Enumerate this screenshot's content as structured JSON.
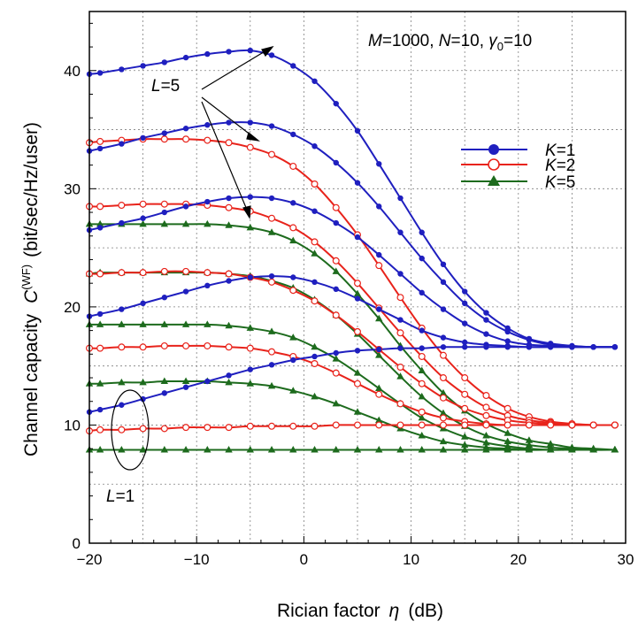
{
  "chart_data": {
    "type": "line",
    "annotation": {
      "M_label": "M",
      "M_value": "=1000, ",
      "N_label": "N",
      "N_value": "=10, ",
      "gamma_label": "γ",
      "gamma_sub": "0",
      "gamma_value": "=10"
    },
    "xlabel": {
      "text": "Rician factor",
      "symbol": "η",
      "unit": "(dB)"
    },
    "ylabel": {
      "text": "Channel capacity",
      "symbol": "C",
      "superscript": "(WF)",
      "unit": "(bit/sec/Hz/user)"
    },
    "xlim": [
      -20,
      30
    ],
    "ylim": [
      0,
      45
    ],
    "xticks": [
      -20,
      -10,
      0,
      10,
      20,
      30
    ],
    "yticks": [
      0,
      10,
      20,
      30,
      40
    ],
    "grid": true,
    "legend_position": "right",
    "legend": [
      {
        "label_var": "K",
        "label_val": "=1",
        "marker": "filled-circle",
        "color": "#1f1fbf"
      },
      {
        "label_var": "K",
        "label_val": "=2",
        "marker": "open-circle",
        "color": "#e8231b"
      },
      {
        "label_var": "K",
        "label_val": "=5",
        "marker": "filled-triangle",
        "color": "#1d6b1d"
      }
    ],
    "label_L5": {
      "var": "L",
      "val": "=5"
    },
    "label_L1": {
      "var": "L",
      "val": "=1"
    },
    "x": [
      -20,
      -19,
      -17,
      -15,
      -13,
      -11,
      -9,
      -7,
      -5,
      -3,
      -1,
      1,
      3,
      5,
      7,
      9,
      11,
      13,
      15,
      17,
      19,
      21,
      23,
      25,
      27,
      29
    ],
    "series": [
      {
        "K": 1,
        "L": 5,
        "values": [
          39.7,
          39.8,
          40.1,
          40.4,
          40.7,
          41.1,
          41.4,
          41.6,
          41.7,
          41.3,
          40.4,
          39.1,
          37.2,
          34.9,
          32.1,
          29.2,
          26.3,
          23.6,
          21.3,
          19.5,
          18.2,
          17.3,
          16.9,
          16.7,
          16.6,
          16.6
        ]
      },
      {
        "K": 1,
        "L": 4,
        "values": [
          33.2,
          33.4,
          33.8,
          34.3,
          34.7,
          35.1,
          35.4,
          35.6,
          35.6,
          35.3,
          34.6,
          33.6,
          32.2,
          30.5,
          28.5,
          26.3,
          24.1,
          22.1,
          20.3,
          18.9,
          17.9,
          17.2,
          16.8,
          16.7,
          16.6,
          16.6
        ]
      },
      {
        "K": 1,
        "L": 3,
        "values": [
          26.5,
          26.7,
          27.1,
          27.5,
          28.0,
          28.5,
          28.9,
          29.2,
          29.3,
          29.2,
          28.8,
          28.1,
          27.1,
          25.9,
          24.4,
          22.8,
          21.2,
          19.8,
          18.6,
          17.7,
          17.1,
          16.8,
          16.7,
          16.6,
          16.6,
          16.6
        ]
      },
      {
        "K": 1,
        "L": 2,
        "values": [
          19.2,
          19.4,
          19.8,
          20.3,
          20.8,
          21.3,
          21.8,
          22.2,
          22.5,
          22.6,
          22.5,
          22.1,
          21.5,
          20.7,
          19.8,
          18.9,
          18.0,
          17.4,
          17.0,
          16.8,
          16.7,
          16.6,
          16.6,
          16.6,
          16.6,
          16.6
        ]
      },
      {
        "K": 1,
        "L": 1,
        "values": [
          11.1,
          11.3,
          11.7,
          12.2,
          12.7,
          13.2,
          13.7,
          14.2,
          14.7,
          15.1,
          15.5,
          15.8,
          16.1,
          16.3,
          16.4,
          16.5,
          16.5,
          16.6,
          16.6,
          16.6,
          16.6,
          16.6,
          16.6,
          16.6,
          16.6,
          16.6
        ]
      },
      {
        "K": 2,
        "L": 4,
        "values": [
          33.9,
          34.0,
          34.1,
          34.2,
          34.2,
          34.2,
          34.1,
          33.9,
          33.5,
          32.9,
          31.9,
          30.4,
          28.4,
          26.1,
          23.5,
          20.8,
          18.2,
          15.9,
          14.0,
          12.5,
          11.4,
          10.7,
          10.3,
          10.1,
          10.0,
          10.0
        ]
      },
      {
        "K": 2,
        "L": 3,
        "values": [
          28.5,
          28.5,
          28.6,
          28.7,
          28.7,
          28.7,
          28.6,
          28.4,
          28.1,
          27.5,
          26.7,
          25.5,
          23.9,
          22.0,
          19.9,
          17.8,
          15.8,
          14.0,
          12.6,
          11.5,
          10.8,
          10.4,
          10.2,
          10.1,
          10.0,
          10.0
        ]
      },
      {
        "K": 2,
        "L": 2,
        "values": [
          22.8,
          22.8,
          22.9,
          22.9,
          23.0,
          23.0,
          22.9,
          22.8,
          22.5,
          22.1,
          21.4,
          20.5,
          19.3,
          17.9,
          16.4,
          14.9,
          13.5,
          12.3,
          11.4,
          10.8,
          10.4,
          10.2,
          10.1,
          10.0,
          10.0,
          10.0
        ]
      },
      {
        "K": 2,
        "L": 1,
        "values": [
          16.5,
          16.5,
          16.6,
          16.6,
          16.7,
          16.7,
          16.7,
          16.6,
          16.5,
          16.2,
          15.8,
          15.2,
          14.4,
          13.5,
          12.6,
          11.8,
          11.1,
          10.6,
          10.3,
          10.1,
          10.0,
          10.0,
          10.0,
          10.0,
          10.0,
          10.0
        ]
      },
      {
        "K": 2,
        "L": 0,
        "values": [
          9.5,
          9.6,
          9.6,
          9.7,
          9.7,
          9.8,
          9.8,
          9.8,
          9.9,
          9.9,
          9.9,
          9.9,
          10.0,
          10.0,
          10.0,
          10.0,
          10.0,
          10.0,
          10.0,
          10.0,
          10.0,
          10.0,
          10.0,
          10.0,
          10.0,
          10.0
        ]
      },
      {
        "K": 5,
        "L": 4,
        "values": [
          27.0,
          27.0,
          27.0,
          27.0,
          27.0,
          27.0,
          27.0,
          26.9,
          26.7,
          26.3,
          25.6,
          24.5,
          23.0,
          21.1,
          19.0,
          16.7,
          14.6,
          12.7,
          11.2,
          10.1,
          9.3,
          8.7,
          8.4,
          8.1,
          8.0,
          7.9
        ]
      },
      {
        "K": 5,
        "L": 3,
        "values": [
          22.8,
          22.9,
          22.9,
          22.9,
          22.9,
          22.9,
          22.9,
          22.8,
          22.6,
          22.2,
          21.6,
          20.6,
          19.3,
          17.7,
          15.9,
          14.1,
          12.4,
          11.0,
          9.9,
          9.1,
          8.6,
          8.3,
          8.1,
          8.0,
          7.9,
          7.9
        ]
      },
      {
        "K": 5,
        "L": 2,
        "values": [
          18.5,
          18.5,
          18.5,
          18.5,
          18.5,
          18.5,
          18.5,
          18.4,
          18.2,
          17.9,
          17.4,
          16.6,
          15.6,
          14.4,
          13.1,
          11.8,
          10.6,
          9.7,
          9.0,
          8.5,
          8.2,
          8.0,
          7.9,
          7.9,
          7.9,
          7.9
        ]
      },
      {
        "K": 5,
        "L": 1,
        "values": [
          13.5,
          13.5,
          13.6,
          13.6,
          13.7,
          13.7,
          13.7,
          13.6,
          13.5,
          13.3,
          12.9,
          12.4,
          11.8,
          11.1,
          10.4,
          9.7,
          9.1,
          8.6,
          8.3,
          8.1,
          8.0,
          7.9,
          7.9,
          7.9,
          7.9,
          7.9
        ]
      },
      {
        "K": 5,
        "L": 0,
        "values": [
          7.9,
          7.9,
          7.9,
          7.9,
          7.9,
          7.9,
          7.9,
          7.9,
          7.9,
          7.9,
          7.9,
          7.9,
          7.9,
          7.9,
          7.9,
          7.9,
          7.9,
          7.9,
          7.9,
          7.9,
          7.9,
          7.9,
          7.9,
          7.9,
          7.9,
          7.9
        ]
      }
    ]
  }
}
